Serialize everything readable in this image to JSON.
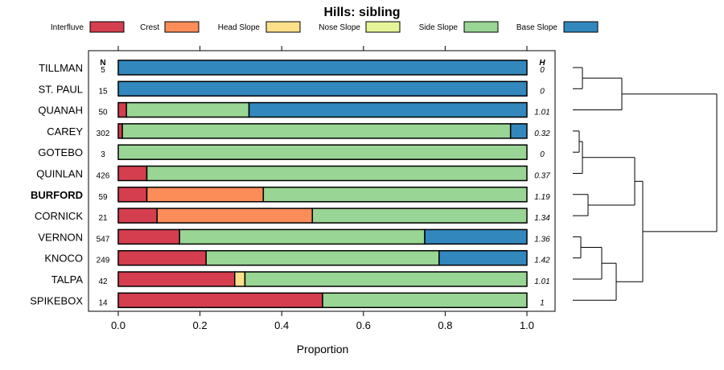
{
  "chart_data": {
    "type": "stacked-bar-horizontal",
    "title": "Hills: sibling",
    "xlabel": "Proportion",
    "ylabel": "",
    "xlim": [
      0,
      1
    ],
    "xticks": [
      "0.0",
      "0.2",
      "0.4",
      "0.6",
      "0.8",
      "1.0"
    ],
    "n_header": "N",
    "h_header": "H",
    "categories": [
      "Interfluve",
      "Crest",
      "Head Slope",
      "Nose Slope",
      "Side Slope",
      "Base Slope"
    ],
    "colors": [
      "#D53E4F",
      "#FC8D59",
      "#FEE08B",
      "#E6F598",
      "#99D594",
      "#3288BD"
    ],
    "rows": [
      {
        "name": "TILLMAN",
        "n": "5",
        "h": "0",
        "bold": false,
        "values": [
          0,
          0,
          0,
          0,
          0,
          1
        ]
      },
      {
        "name": "ST. PAUL",
        "n": "15",
        "h": "0",
        "bold": false,
        "values": [
          0,
          0,
          0,
          0,
          0,
          1
        ]
      },
      {
        "name": "QUANAH",
        "n": "50",
        "h": "1.01",
        "bold": false,
        "values": [
          0.02,
          0,
          0,
          0,
          0.3,
          0.68
        ]
      },
      {
        "name": "CAREY",
        "n": "302",
        "h": "0.32",
        "bold": false,
        "values": [
          0.01,
          0,
          0,
          0,
          0.95,
          0.04
        ]
      },
      {
        "name": "GOTEBO",
        "n": "3",
        "h": "0",
        "bold": false,
        "values": [
          0,
          0,
          0,
          0,
          1,
          0
        ]
      },
      {
        "name": "QUINLAN",
        "n": "426",
        "h": "0.37",
        "bold": false,
        "values": [
          0.07,
          0,
          0,
          0,
          0.93,
          0
        ]
      },
      {
        "name": "BURFORD",
        "n": "59",
        "h": "1.19",
        "bold": true,
        "values": [
          0.07,
          0.285,
          0,
          0,
          0.645,
          0
        ]
      },
      {
        "name": "CORNICK",
        "n": "21",
        "h": "1.34",
        "bold": false,
        "values": [
          0.095,
          0.38,
          0,
          0,
          0.525,
          0
        ]
      },
      {
        "name": "VERNON",
        "n": "547",
        "h": "1.36",
        "bold": false,
        "values": [
          0.15,
          0,
          0,
          0,
          0.6,
          0.25
        ]
      },
      {
        "name": "KNOCO",
        "n": "249",
        "h": "1.42",
        "bold": false,
        "values": [
          0.215,
          0,
          0,
          0,
          0.57,
          0.215
        ]
      },
      {
        "name": "TALPA",
        "n": "42",
        "h": "1.01",
        "bold": false,
        "values": [
          0.285,
          0,
          0.025,
          0,
          0.69,
          0
        ]
      },
      {
        "name": "SPIKEBOX",
        "n": "14",
        "h": "1",
        "bold": false,
        "values": [
          0.5,
          0,
          0,
          0,
          0.5,
          0
        ]
      }
    ]
  }
}
